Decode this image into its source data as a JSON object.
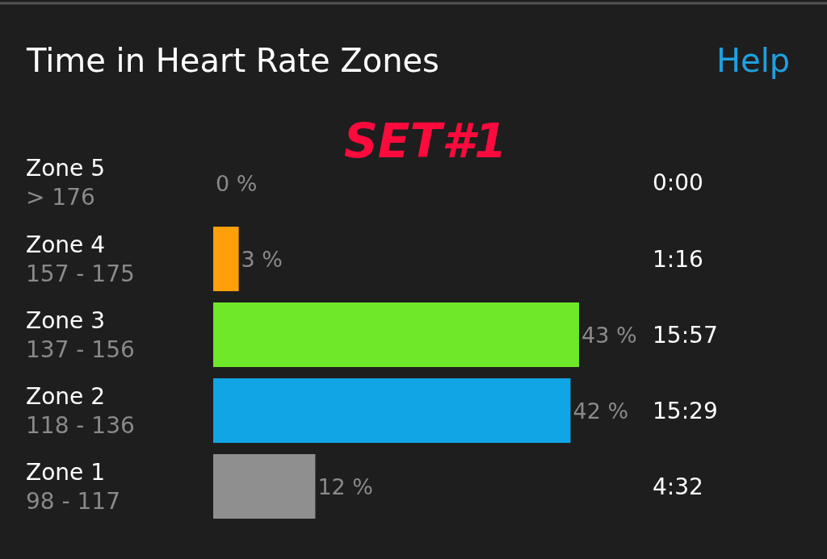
{
  "chart_data": {
    "type": "bar",
    "orientation": "horizontal",
    "title": "Time in Heart Rate Zones",
    "categories": [
      "Zone 5\n> 176",
      "Zone 4\n157 - 175",
      "Zone 3\n137 - 156",
      "Zone 2\n118 - 136",
      "Zone 1\n98 - 117"
    ],
    "values": [
      0,
      3,
      43,
      42,
      12
    ],
    "value_labels": [
      "0 %",
      "3 %",
      "43 %",
      "42 %",
      "12 %"
    ],
    "colors": [
      "#e8112d",
      "#ff9f0a",
      "#6fe82a",
      "#12a5e6",
      "#8f8f8f"
    ],
    "annotations": [
      "Help",
      "SET#1",
      "0:00",
      "1:16",
      "15:57",
      "15:29",
      "4:32"
    ],
    "legend": false
  }
}
